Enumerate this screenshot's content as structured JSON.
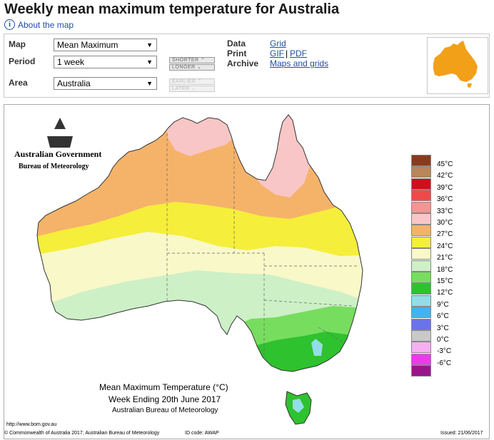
{
  "page": {
    "title": "Weekly mean maximum temperature for Australia",
    "about_link": "About the map"
  },
  "controls": {
    "map_label": "Map",
    "map_value": "Mean Maximum",
    "period_label": "Period",
    "period_value": "1 week",
    "area_label": "Area",
    "area_value": "Australia",
    "shorter": "SHORTER",
    "longer": "LONGER",
    "earlier": "EARLIER",
    "later": "LATER",
    "data_label": "Data",
    "data_link": "Grid",
    "print_label": "Print",
    "print_gif": "GIF",
    "print_sep": "|",
    "print_pdf": "PDF",
    "archive_label": "Archive",
    "archive_link": "Maps and grids"
  },
  "map": {
    "gov_title": "Australian Government",
    "gov_subtitle": "Bureau of Meteorology",
    "caption_title": "Mean Maximum Temperature (°C)",
    "caption_week": "Week Ending 20th June 2017",
    "caption_org": "Australian Bureau of Meteorology",
    "url": "http://www.bom.gov.au",
    "legend": [
      {
        "label": "45°C",
        "color": "#8b3a1e"
      },
      {
        "label": "42°C",
        "color": "#b88658"
      },
      {
        "label": "39°C",
        "color": "#cf0f1f"
      },
      {
        "label": "36°C",
        "color": "#ef4a4a"
      },
      {
        "label": "33°C",
        "color": "#f89393"
      },
      {
        "label": "30°C",
        "color": "#f8c6c6"
      },
      {
        "label": "27°C",
        "color": "#f5b36a"
      },
      {
        "label": "24°C",
        "color": "#f5ee3a"
      },
      {
        "label": "21°C",
        "color": "#f8f8c9"
      },
      {
        "label": "18°C",
        "color": "#cdf0c7"
      },
      {
        "label": "15°C",
        "color": "#77dd5f"
      },
      {
        "label": "12°C",
        "color": "#2ec22e"
      },
      {
        "label": "9°C",
        "color": "#93dde7"
      },
      {
        "label": "6°C",
        "color": "#3fb5ee"
      },
      {
        "label": "3°C",
        "color": "#6b73e8"
      },
      {
        "label": "0°C",
        "color": "#c9c9c9"
      },
      {
        "label": "-3°C",
        "color": "#f6b0f2"
      },
      {
        "label": "-6°C",
        "color": "#ef38ee"
      },
      {
        "label": "",
        "color": "#9a158c"
      }
    ]
  },
  "footer": {
    "copyright": "© Commonwealth of Australia 2017, Australian Bureau of Meteorology",
    "id": "ID code: AWAP",
    "issued": "Issued: 21/06/2017"
  }
}
